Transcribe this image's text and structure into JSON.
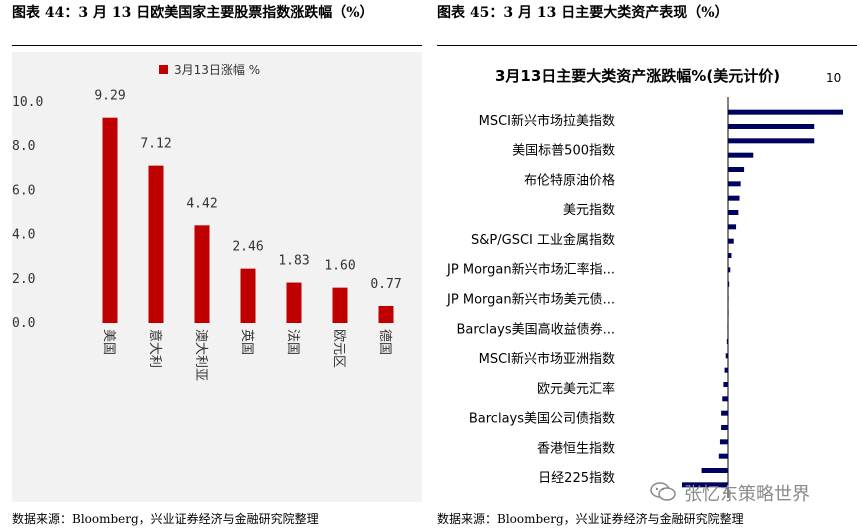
{
  "left": {
    "caption": "图表 44：3 月 13 日欧美国家主要股票指数涨跌幅（%）",
    "source": "数据来源：Bloomberg，兴业证券经济与金融研究院整理"
  },
  "right": {
    "caption": "图表 45：3 月 13 日主要大类资产表现（%）",
    "source": "数据来源：Bloomberg，兴业证券经济与金融研究院整理"
  },
  "watermark": {
    "text": "张忆东策略世界",
    "icon": "wechat-icon"
  },
  "chart_data": [
    {
      "type": "bar",
      "title": "",
      "legend": {
        "label": "3月13日涨幅 %",
        "placement": "top-center"
      },
      "categories": [
        "美国",
        "意大利",
        "澳大利亚",
        "英国",
        "法国",
        "欧元区",
        "德国"
      ],
      "values": [
        9.29,
        7.12,
        4.42,
        2.46,
        1.83,
        1.6,
        0.77
      ],
      "value_labels": [
        "9.29",
        "7.12",
        "4.42",
        "2.46",
        "1.83",
        "1.60",
        "0.77"
      ],
      "yticks": [
        "0.0",
        "2.0",
        "4.0",
        "6.0",
        "8.0",
        "10.0"
      ],
      "ylim": [
        0,
        10
      ],
      "grid": false,
      "color": "#c00000"
    },
    {
      "type": "bar",
      "orientation": "horizontal",
      "title": "3月13日主要大类资产涨跌幅%(美元计价)",
      "axis_top_label": "10",
      "xlim": [
        -4,
        10
      ],
      "color": "#00005e",
      "labeled_categories": [
        "MSCI新兴市场拉美指数",
        "美国标普500指数",
        "布伦特原油价格",
        "美元指数",
        "S&P/GSCI 工业金属指数",
        "JP Morgan新兴市场汇率指...",
        "JP Morgan新兴市场美元债...",
        "Barclays美国高收益债券...",
        "MSCI新兴市场亚洲指数",
        "欧元美元汇率",
        "Barclays美国公司债指数",
        "香港恒生指数",
        "日经225指数"
      ],
      "values": [
        10.0,
        7.5,
        7.5,
        2.2,
        1.4,
        1.1,
        1.0,
        0.9,
        0.7,
        0.5,
        0.3,
        0.2,
        0.1,
        0.05,
        0.0,
        -0.05,
        -0.1,
        -0.2,
        -0.3,
        -0.4,
        -0.5,
        -0.6,
        -0.6,
        -0.7,
        -0.8,
        -2.3,
        -4.0
      ]
    }
  ]
}
